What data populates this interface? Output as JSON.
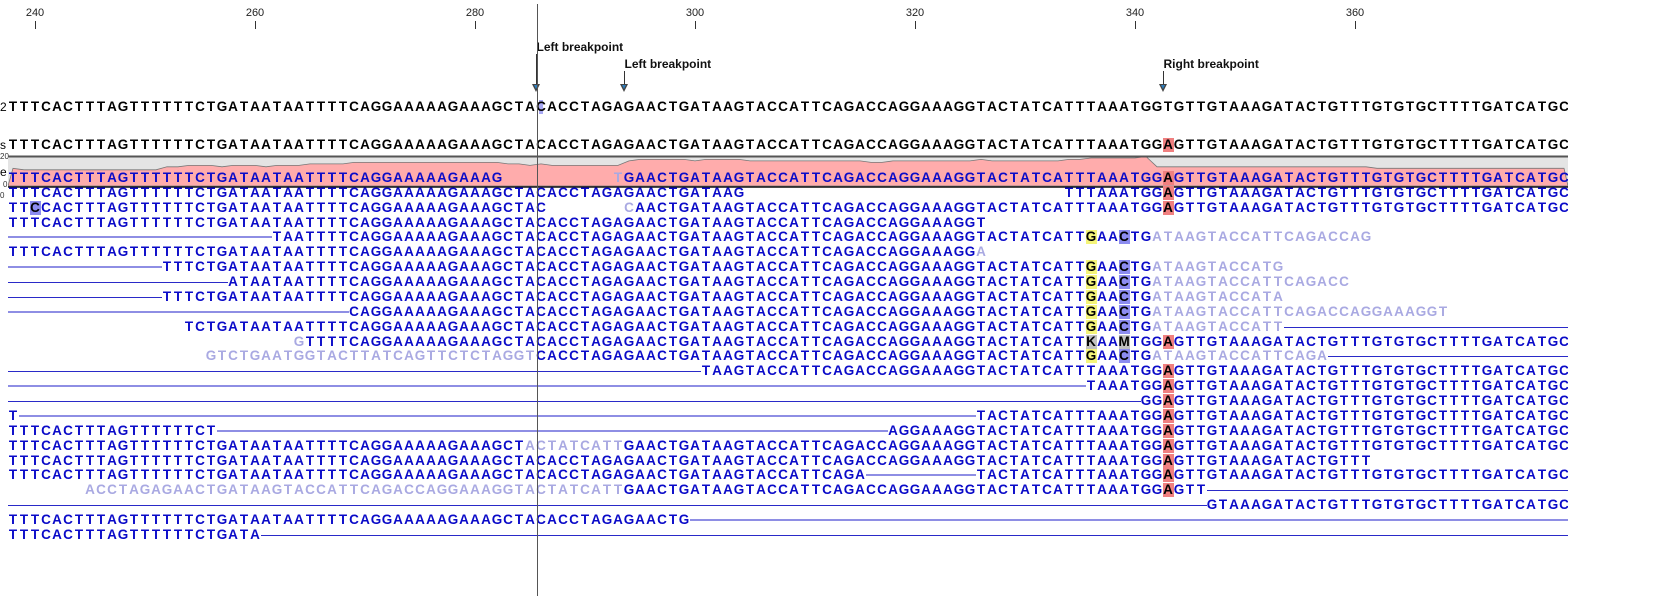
{
  "ruler": {
    "ticks": [
      240,
      260,
      280,
      300,
      320,
      340,
      360
    ]
  },
  "window_start": 238,
  "annotations": [
    {
      "label": "Left breakpoint",
      "position": 286
    },
    {
      "label": "Left breakpoint",
      "position": 294
    },
    {
      "label": "Right breakpoint",
      "position": 343
    }
  ],
  "reference": {
    "label": "2",
    "sequence": "TTTCACTTTAGTTTTTTCTGATAATAATTTTCAGGAAAAAGAAAGCTACACCTAGAGAACTGATAAGTACCATTCAGACCAGGAAAGGTACTATCATTTAAATGGTGTTGTAAAGATACTGTTTGTGTGCTTTTGATCATGC",
    "highlight_position": 286
  },
  "consensus": {
    "label": "s",
    "sequence": "TTTCACTTTAGTTTTTTCTGATAATAATTTTCAGGAAAAAGAAAGCTACACCTAGAGAACTGATAAGTACCATTCAGACCAGGAAAGGTACTATCATTTAAATGGAGTTGTAAAGATACTGTTTGTGTGCTTTTGATCATGC"
  },
  "coverage": {
    "label": "e",
    "max_label": "20",
    "min_label": "0",
    "max": 20
  },
  "reads": {
    "label": "0",
    "rows": [
      [
        {
          "at": 238,
          "seq": "TTTCACTTTAGTTTTTTCTGATAATAATTTTCAGGAAAAAGAAAG"
        },
        {
          "at": 293,
          "clip": "T"
        },
        {
          "at": 294,
          "seq": "GAACTGATAAGTACCATTCAGACCAGGAAAGGTACTATCATTTAAATGGAGTTGTAAAGATACTGTTTGTGTGCTTTTGATCATGC"
        }
      ],
      [
        {
          "at": 238,
          "seq": "TTTCACTTTAGTTTTTTCTGATAATAATTTTCAGGAAAAAGAAAGCTACACCTAGAGAACTGATAAG"
        },
        {
          "at": 334,
          "seq": "TTTAAATGGAGTTGTAAAGATACTGTTTGTGTGCTTTTGATCATGC"
        }
      ],
      [
        {
          "at": 238,
          "seq": "TTCCACTTTAGTTTTTTCTGATAATAATTTTCAGGAAAAAGAAAGCTAC"
        },
        {
          "at": 294,
          "clip": "C"
        },
        {
          "at": 295,
          "seq": "AACTGATAAGTACCATTCAGACCAGGAAAGGTACTATCATTTAAATGGAGTTGTAAAGATACTGTTTGTGTGCTTTTGATCATGC"
        }
      ],
      [
        {
          "at": 238,
          "seq": "TTTCACTTTAGTTTTTTCTGATAATAATTTTCAGGAAAAAGAAAGCTACACCTAGAGAACTGATAAGTACCATTCAGACCAGGAAAGGT"
        }
      ],
      [
        {
          "at": 238,
          "to": 261,
          "line": "light"
        },
        {
          "at": 262,
          "seq": "TAATTTTCAGGAAAAAGAAAGCTACACCTAGAGAACTGATAAGTACCATTCAGACCAGGAAAGGTACTATCATTGAACTG"
        },
        {
          "at": 342,
          "clip": "ATAAGTACCATTCAGACCAG"
        }
      ],
      [
        {
          "at": 238,
          "seq": "TTTCACTTTAGTTTTTTCTGATAATAATTTTCAGGAAAAAGAAAGCTACACCTAGAGAACTGATAAGTACCATTCAGACCAGGAAAGG"
        },
        {
          "at": 326,
          "clip": "A"
        }
      ],
      [
        {
          "at": 238,
          "to": 251,
          "line": "light"
        },
        {
          "at": 252,
          "seq": "TTTCTGATAATAATTTTCAGGAAAAAGAAAGCTACACCTAGAGAACTGATAAGTACCATTCAGACCAGGAAAGGTACTATCATTGAACTG"
        },
        {
          "at": 342,
          "clip": "ATAAGTACCATG"
        }
      ],
      [
        {
          "at": 238,
          "to": 257,
          "line": "dark"
        },
        {
          "at": 258,
          "seq": "ATAATAATTTTCAGGAAAAAGAAAGCTACACCTAGAGAACTGATAAGTACCATTCAGACCAGGAAAGGTACTATCATTGAACTG"
        },
        {
          "at": 342,
          "clip": "ATAAGTACCATTCAGACC"
        }
      ],
      [
        {
          "at": 238,
          "to": 251,
          "line": "dark"
        },
        {
          "at": 252,
          "seq": "TTTCTGATAATAATTTTCAGGAAAAAGAAAGCTACACCTAGAGAACTGATAAGTACCATTCAGACCAGGAAAGGTACTATCATTGAACTG"
        },
        {
          "at": 342,
          "clip": "ATAAGTACCATA"
        }
      ],
      [
        {
          "at": 238,
          "to": 268,
          "line": "light"
        },
        {
          "at": 269,
          "seq": "CAGGAAAAAGAAAGCTACACCTAGAGAACTGATAAGTACCATTCAGACCAGGAAAGGTACTATCATTGAACTG"
        },
        {
          "at": 342,
          "clip": "ATAAGTACCATTCAGACCAGGAAAGGT"
        }
      ],
      [
        {
          "at": 254,
          "seq": "TCTGATAATAATTTTCAGGAAAAAGAAAGCTACACCTAGAGAACTGATAAGTACCATTCAGACCAGGAAAGGTACTATCATTGAACTG"
        },
        {
          "at": 342,
          "clip": "ATAAGTACCATT"
        },
        {
          "at": 354,
          "to": 379,
          "line": "dark"
        }
      ],
      [
        {
          "at": 264,
          "clip": "G"
        },
        {
          "at": 265,
          "seq": "TTTTCAGGAAAAAGAAAGCTACACCTAGAGAACTGATAAGTACCATTCAGACCAGGAAAGGTACTATCATTKAAMTGGAGTTGTAAAGATACTGTTTGTGTGCTTTTGATCATGC"
        }
      ],
      [
        {
          "at": 256,
          "clip": "GTCTGAATGGTACTTATCAGTTCTCTAGGT"
        },
        {
          "at": 286,
          "seq": "CACCTAGAGAACTGATAAGTACCATTCAGACCAGGAAAGGTACTATCATTGAACTG"
        },
        {
          "at": 342,
          "clip": "ATAAGTACCATTCAGA"
        },
        {
          "at": 358,
          "to": 379,
          "line": "dark"
        }
      ],
      [
        {
          "at": 238,
          "to": 300,
          "line": "dark"
        },
        {
          "at": 301,
          "seq": "TAAGTACCATTCAGACCAGGAAAGGTACTATCATTTAAATGGAGTTGTAAAGATACTGTTTGTGTGCTTTTGATCATGC"
        }
      ],
      [
        {
          "at": 238,
          "to": 335,
          "line": "light"
        },
        {
          "at": 336,
          "seq": "TAAATGGAGTTGTAAAGATACTGTTTGTGTGCTTTTGATCATGC"
        }
      ],
      [
        {
          "at": 238,
          "to": 340,
          "line": "dark"
        },
        {
          "at": 341,
          "seq": "GGAGTTGTAAAGATACTGTTTGTGTGCTTTTGATCATGC"
        }
      ],
      [
        {
          "at": 238,
          "seq": "T"
        },
        {
          "at": 239,
          "to": 325,
          "line": "light"
        },
        {
          "at": 326,
          "seq": "TACTATCATTTAAATGGAGTTGTAAAGATACTGTTTGTGTGCTTTTGATCATGC"
        }
      ],
      [
        {
          "at": 238,
          "seq": "TTTCACTTTAGTTTTTTCT"
        },
        {
          "at": 257,
          "to": 317,
          "line": "light"
        },
        {
          "at": 318,
          "seq": "AGGAAAGGTACTATCATTTAAATGGAGTTGTAAAGATACTGTTTGTGTGCTTTTGATCATGC"
        }
      ],
      [
        {
          "at": 238,
          "seq": "TTTCACTTTAGTTTTTTCTGATAATAATTTTCAGGAAAAAGAAAGCT"
        },
        {
          "at": 285,
          "clip": "ACTATCATT"
        },
        {
          "at": 294,
          "seq": "GAACTGATAAGTACCATTCAGACCAGGAAAGGTACTATCATTTAAATGGAGTTGTAAAGATACTGTTTGTGTGCTTTTGATCATGC"
        }
      ],
      [
        {
          "at": 238,
          "seq": "TTTCACTTTAGTTTTTTCTGATAATAATTTTCAGGAAAAAGAAAGCTACACCTAGAGAACTGATAAGTACCATTCAGACCAGGAAAGGTACTATCATTTAAATGGAGTTGTAAAGATACTGTTT"
        }
      ],
      [
        {
          "at": 238,
          "seq": "TTTCACTTTAGTTTTTTCTGATAATAATTTTCAGGAAAAAGAAAGCTACACCTAGAGAACTGATAAGTACCATTCAGA"
        },
        {
          "at": 316,
          "to": 325,
          "line": "light"
        },
        {
          "at": 326,
          "seq": "TACTATCATTTAAATGGAGTTGTAAAGATACTGTTTGTGTGCTTTTGATCATGC"
        }
      ],
      [
        {
          "at": 245,
          "clip": "ACCTAGAGAACTGATAAGTACCATTCAGACCAGGAAAGGTACTATCATT"
        },
        {
          "at": 294,
          "seq": "GAACTGATAAGTACCATTCAGACCAGGAAAGGTACTATCATTTAAATGGAGTT"
        },
        {
          "at": 347,
          "to": 379,
          "line": "dark"
        }
      ],
      [
        {
          "at": 238,
          "to": 346,
          "line": "dark"
        },
        {
          "at": 347,
          "seq": "GTAAAGATACTGTTTGTGTGCTTTTGATCATGC"
        }
      ],
      [
        {
          "at": 238,
          "seq": "TTTCACTTTAGTTTTTTCTGATAATAATTTTCAGGAAAAAGAAAGCTACACCTAGAGAACTG"
        },
        {
          "at": 300,
          "to": 379,
          "line": "light"
        }
      ],
      [
        {
          "at": 238,
          "seq": "TTTCACTTTAGTTTTTTCTGATA"
        },
        {
          "at": 261,
          "to": 379,
          "line": "dark"
        }
      ]
    ]
  },
  "colors": {
    "read_base": "#0a0ac8",
    "clipped_base": "#a9a9e2",
    "mismatch_A": "#f08080",
    "mismatch_C": "#8c8cf0",
    "mismatch_G": "#f5f57a",
    "mismatch_T": "#8ce08c",
    "mismatch_ambiguous": "#c0c0c0",
    "reference_highlight": "#a8a8f4",
    "coverage_fill": "#ffacac",
    "coverage_background": "#e4e4e4"
  }
}
